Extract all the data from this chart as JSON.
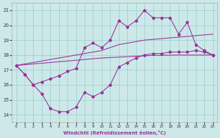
{
  "xlabel": "Windchill (Refroidissement éolien,°C)",
  "background_color": "#cce8e8",
  "line_color": "#993399",
  "xlim": [
    -0.5,
    23.5
  ],
  "ylim": [
    13.5,
    21.5
  ],
  "xticks": [
    0,
    1,
    2,
    3,
    4,
    5,
    6,
    7,
    8,
    9,
    10,
    11,
    12,
    13,
    14,
    15,
    16,
    17,
    18,
    19,
    20,
    21,
    22,
    23
  ],
  "yticks": [
    14,
    15,
    16,
    17,
    18,
    19,
    20,
    21
  ],
  "grid_color": "#99cccc",
  "s1_x": [
    0,
    1,
    2,
    3,
    4,
    5,
    6,
    7,
    8,
    9,
    10,
    11,
    12,
    13,
    14,
    15,
    16,
    17,
    18,
    19,
    20,
    21,
    22,
    23
  ],
  "s1_y": [
    17.3,
    16.7,
    16.0,
    15.4,
    14.4,
    14.2,
    14.2,
    14.5,
    15.5,
    15.2,
    15.5,
    16.0,
    17.2,
    17.5,
    17.8,
    18.0,
    18.1,
    18.1,
    18.2,
    18.2,
    18.2,
    18.3,
    18.2,
    18.0
  ],
  "s2_x": [
    0,
    1,
    2,
    3,
    4,
    5,
    6,
    7,
    8,
    9,
    10,
    11,
    12,
    13,
    14,
    15,
    16,
    17,
    18,
    19,
    20,
    21,
    22,
    23
  ],
  "s2_y": [
    17.3,
    17.35,
    17.4,
    17.45,
    17.5,
    17.55,
    17.6,
    17.65,
    17.7,
    17.75,
    17.8,
    17.83,
    17.86,
    17.89,
    17.92,
    17.95,
    17.97,
    17.98,
    17.99,
    18.0,
    18.0,
    18.0,
    18.0,
    18.0
  ],
  "s3_x": [
    0,
    1,
    2,
    3,
    4,
    5,
    6,
    7,
    8,
    9,
    10,
    11,
    12,
    13,
    14,
    15,
    16,
    17,
    18,
    19,
    20,
    21,
    22,
    23
  ],
  "s3_y": [
    17.3,
    17.4,
    17.5,
    17.6,
    17.7,
    17.8,
    17.9,
    18.0,
    18.1,
    18.2,
    18.3,
    18.5,
    18.7,
    18.8,
    18.9,
    19.0,
    19.05,
    19.1,
    19.15,
    19.2,
    19.25,
    19.3,
    19.35,
    19.4
  ],
  "s4_x": [
    0,
    1,
    2,
    3,
    4,
    5,
    6,
    7,
    8,
    9,
    10,
    11,
    12,
    13,
    14,
    15,
    16,
    17,
    18,
    19,
    20,
    21,
    22,
    23
  ],
  "s4_y": [
    17.3,
    16.7,
    16.0,
    16.2,
    16.4,
    16.6,
    16.9,
    17.1,
    18.5,
    18.8,
    18.5,
    19.0,
    20.3,
    19.9,
    20.3,
    21.0,
    20.5,
    20.5,
    20.5,
    19.4,
    20.2,
    18.7,
    18.3,
    18.0
  ]
}
